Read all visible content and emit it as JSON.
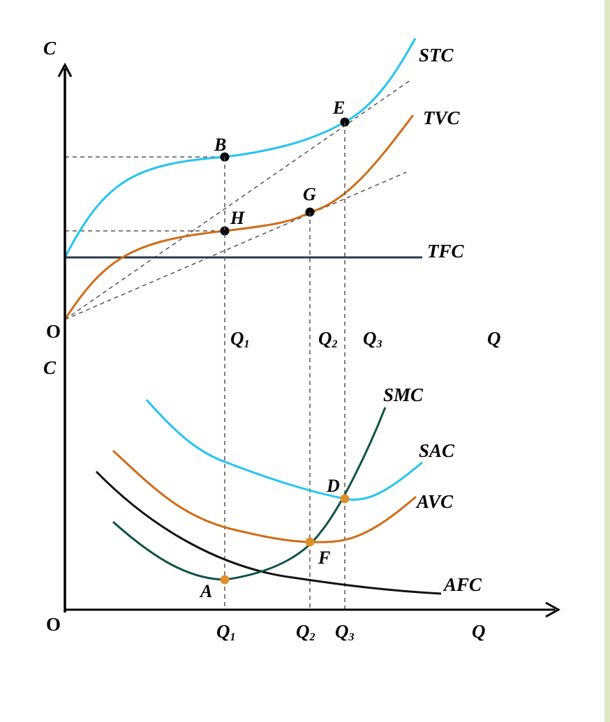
{
  "colors": {
    "stc": "#22c4f0",
    "tvc": "#d06c14",
    "tfc": "#2b3848",
    "smc": "#0f5248",
    "sac": "#22c4f0",
    "avc": "#d06c14",
    "afc": "#111111",
    "dashed": "#555555",
    "point_dark": "#000000",
    "point_orange": "#e0902a",
    "right_border": "#dfe8c4"
  },
  "top_chart": {
    "y_axis_label": "C",
    "origin_label": "O",
    "x_axis_label": "Q",
    "curves": {
      "stc": "STC",
      "tvc": "TVC",
      "tfc": "TFC"
    },
    "points": {
      "b": "B",
      "h": "H",
      "e": "E",
      "g": "G"
    },
    "q_ticks": [
      {
        "base": "Q",
        "sub": "1"
      },
      {
        "base": "Q",
        "sub": "2"
      },
      {
        "base": "Q",
        "sub": "3"
      }
    ]
  },
  "bottom_chart": {
    "y_axis_label": "C",
    "origin_label": "O",
    "x_axis_label": "Q",
    "curves": {
      "smc": "SMC",
      "sac": "SAC",
      "avc": "AVC",
      "afc": "AFC"
    },
    "points": {
      "d": "D",
      "f": "F",
      "a": "A"
    },
    "q_ticks": [
      {
        "base": "Q",
        "sub": "1"
      },
      {
        "base": "Q",
        "sub": "2"
      },
      {
        "base": "Q",
        "sub": "3"
      }
    ]
  }
}
